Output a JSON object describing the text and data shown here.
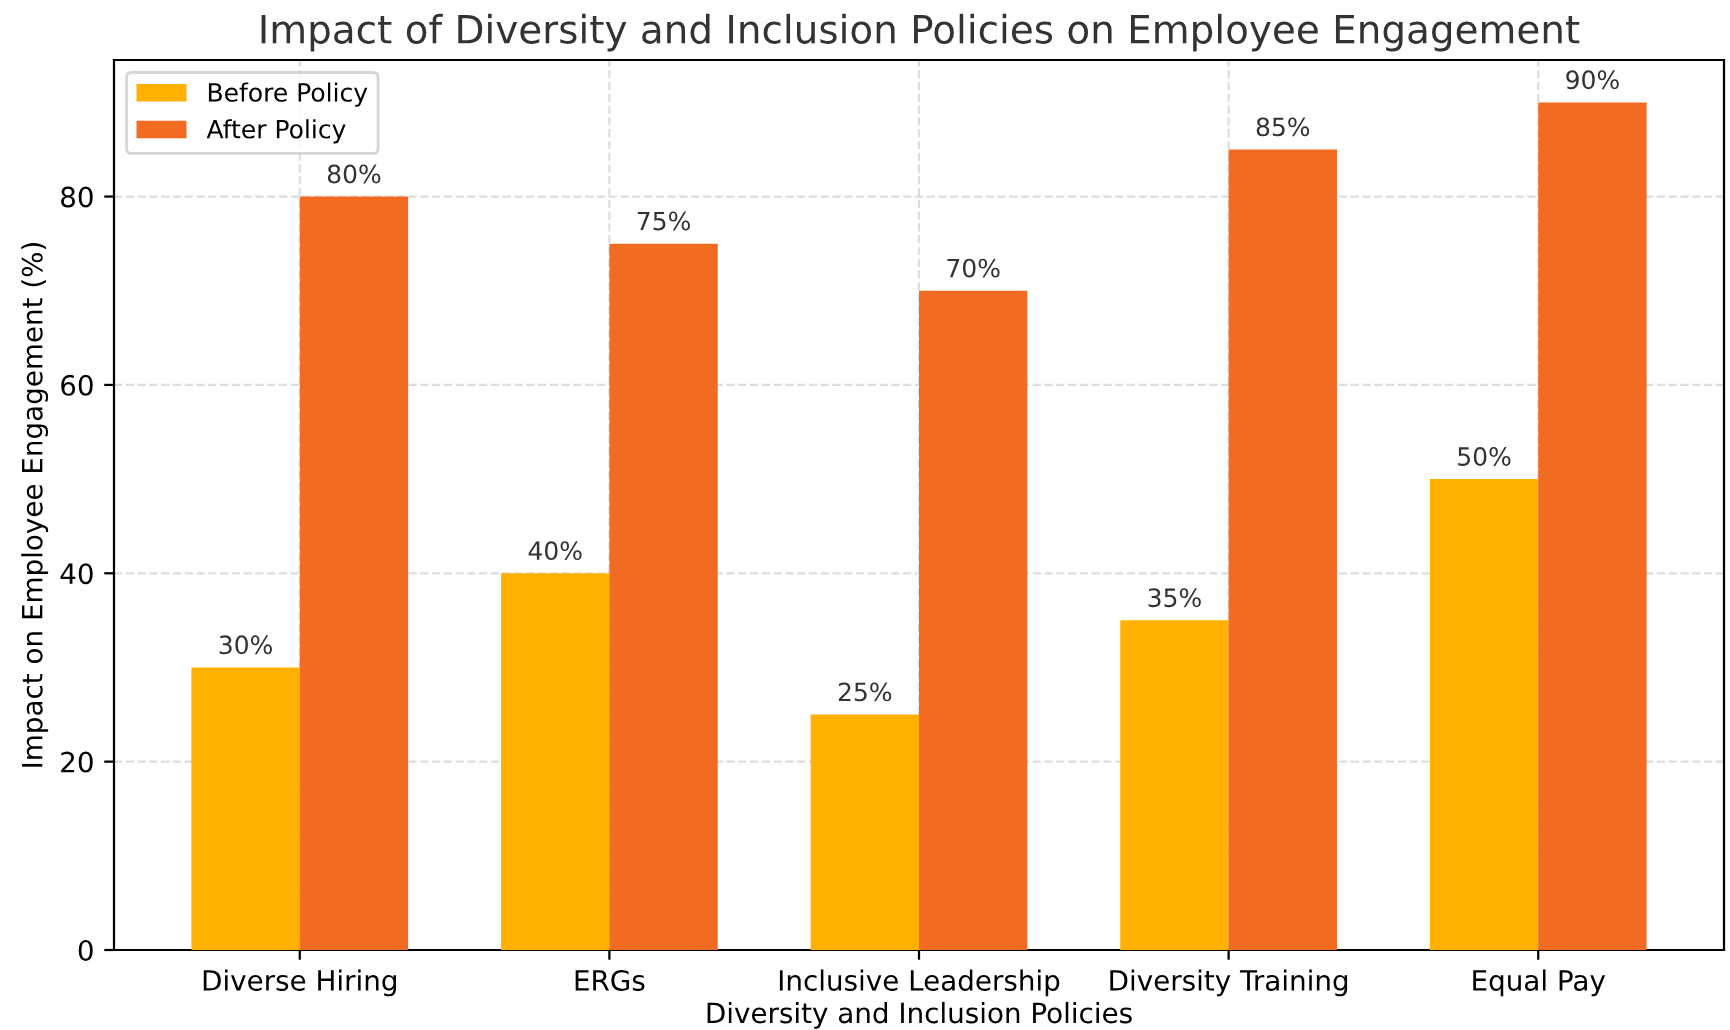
{
  "chart_data": {
    "type": "bar",
    "title": "Impact of Diversity and Inclusion Policies on Employee Engagement",
    "xlabel": "Diversity and Inclusion Policies",
    "ylabel": "Impact on Employee Engagement (%)",
    "categories": [
      "Diverse Hiring",
      "ERGs",
      "Inclusive Leadership",
      "Diversity Training",
      "Equal Pay"
    ],
    "series": [
      {
        "name": "Before Policy",
        "color": "#ffb000",
        "values": [
          30,
          40,
          25,
          35,
          50
        ],
        "value_labels": [
          "30%",
          "40%",
          "25%",
          "35%",
          "50%"
        ]
      },
      {
        "name": "After Policy",
        "color": "#f26b22",
        "values": [
          80,
          75,
          70,
          85,
          90
        ],
        "value_labels": [
          "80%",
          "75%",
          "70%",
          "85%",
          "90%"
        ]
      }
    ],
    "ylim": [
      0,
      94.5
    ],
    "yticks": [
      0,
      20,
      40,
      60,
      80
    ],
    "grid": true,
    "legend": "top left"
  }
}
